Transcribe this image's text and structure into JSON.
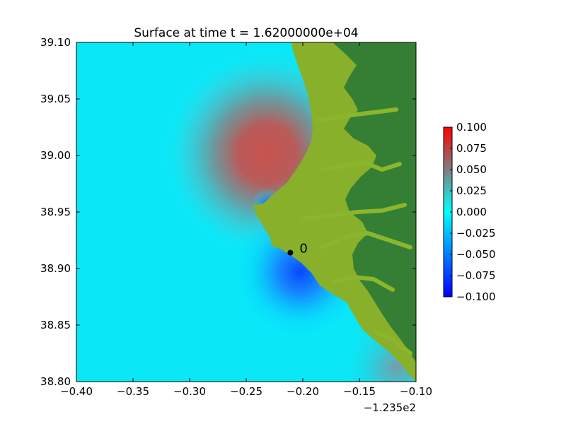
{
  "chart_data": {
    "type": "heatmap",
    "title": "Surface at time t = 1.62000000e+04",
    "xlabel": "",
    "ylabel": "",
    "xlim": [
      -0.4,
      -0.1
    ],
    "ylim": [
      38.8,
      39.1
    ],
    "x_ticks": [
      "−0.40",
      "−0.35",
      "−0.30",
      "−0.25",
      "−0.20",
      "−0.15",
      "−0.10"
    ],
    "x_tick_values": [
      -0.4,
      -0.35,
      -0.3,
      -0.25,
      -0.2,
      -0.15,
      -0.1
    ],
    "x_offset_label": "−1.235e2",
    "y_ticks": [
      "39.10",
      "39.05",
      "39.00",
      "38.95",
      "38.90",
      "38.85",
      "38.80"
    ],
    "y_tick_values": [
      39.1,
      39.05,
      39.0,
      38.95,
      38.9,
      38.85,
      38.8
    ],
    "grid": false,
    "colorbar": {
      "vmin": -0.1,
      "vmax": 0.1,
      "ticks": [
        "0.100",
        "0.075",
        "0.050",
        "0.025",
        "0.000",
        "−0.025",
        "−0.050",
        "−0.075",
        "−0.100"
      ],
      "tick_values": [
        0.1,
        0.075,
        0.05,
        0.025,
        0.0,
        -0.025,
        -0.05,
        -0.075,
        -0.1
      ],
      "colors": [
        "#0000ff",
        "#00ffff",
        "#ff0000"
      ]
    },
    "features": {
      "positive_anomaly": {
        "x": -0.23,
        "y": 39.0,
        "value": 0.06
      },
      "negative_anomaly": {
        "x": -0.19,
        "y": 38.895,
        "value": -0.08
      },
      "land_colors": {
        "lowland": "#88b02a",
        "upland": "#357f34"
      }
    },
    "gauge": {
      "label": "0",
      "x": -0.211,
      "y": 38.914
    }
  }
}
